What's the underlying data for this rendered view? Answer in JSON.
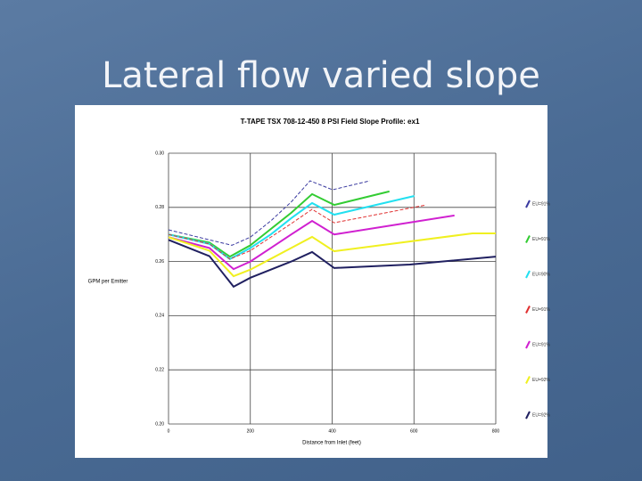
{
  "title": "Lateral flow varied slope",
  "chart_data": {
    "type": "line",
    "title": "T-TAPE TSX 708-12-450 8 PSI  Field Slope Profile: ex1",
    "x_label": "Distance from Inlet (feet)",
    "y_label": "GPM per Emitter",
    "xlim": [
      0,
      800
    ],
    "xticks": [
      0,
      200,
      400,
      600,
      800
    ],
    "ylim": [
      0.2,
      0.3
    ],
    "yticks": [
      {
        "value": 0.2,
        "label": "0.20"
      },
      {
        "value": 0.22,
        "label": "0.22"
      },
      {
        "value": 0.24,
        "label": "0.24"
      },
      {
        "value": 0.26,
        "label": "0.26"
      },
      {
        "value": 0.28,
        "label": "0.28"
      },
      {
        "value": 0.3,
        "label": "0.30"
      }
    ],
    "grid": true,
    "legend": "right",
    "series": [
      {
        "name": "EU=91%",
        "color": "#3a3aa0",
        "x": [
          0,
          100,
          155,
          200,
          250,
          300,
          346,
          401,
          492
        ],
        "values": [
          0.2717,
          0.268,
          0.266,
          0.269,
          0.275,
          0.282,
          0.2898,
          0.2865,
          0.2898
        ]
      },
      {
        "name": "EU=91%",
        "color": "#33cc33",
        "x": [
          0,
          100,
          150,
          200,
          250,
          300,
          351,
          405,
          540
        ],
        "values": [
          0.27,
          0.267,
          0.2618,
          0.266,
          0.272,
          0.278,
          0.2849,
          0.2809,
          0.2859
        ]
      },
      {
        "name": "EU=90%",
        "color": "#22e0f0",
        "x": [
          0,
          100,
          150,
          200,
          250,
          300,
          351,
          405,
          601
        ],
        "values": [
          0.27,
          0.2665,
          0.2609,
          0.265,
          0.27,
          0.276,
          0.2816,
          0.2773,
          0.2842
        ]
      },
      {
        "name": "EU=91%",
        "color": "#e03030",
        "x": [
          0,
          100,
          150,
          200,
          250,
          300,
          351,
          405,
          630
        ],
        "values": [
          0.27,
          0.2665,
          0.2609,
          0.264,
          0.269,
          0.274,
          0.2793,
          0.2743,
          0.2809
        ]
      },
      {
        "name": "EU=91%",
        "color": "#d020d0",
        "x": [
          0,
          100,
          159,
          200,
          250,
          300,
          351,
          405,
          699
        ],
        "values": [
          0.269,
          0.265,
          0.2572,
          0.26,
          0.265,
          0.27,
          0.275,
          0.27,
          0.277
        ]
      },
      {
        "name": "EU=92%",
        "color": "#f0f020",
        "x": [
          0,
          100,
          159,
          200,
          250,
          300,
          351,
          405,
          743,
          800
        ],
        "values": [
          0.269,
          0.264,
          0.2546,
          0.257,
          0.261,
          0.265,
          0.2691,
          0.2638,
          0.2704,
          0.2704
        ]
      },
      {
        "name": "EU=92%",
        "color": "#202060",
        "x": [
          0,
          100,
          159,
          200,
          250,
          300,
          351,
          405,
          590,
          800
        ],
        "values": [
          0.268,
          0.262,
          0.2507,
          0.254,
          0.257,
          0.26,
          0.2635,
          0.2576,
          0.2589,
          0.2618
        ]
      }
    ]
  }
}
